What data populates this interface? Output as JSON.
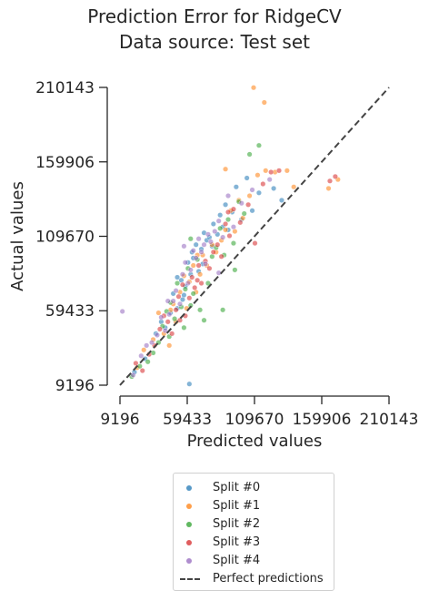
{
  "chart_data": {
    "type": "scatter",
    "title": "Prediction Error for RidgeCV",
    "subtitle": "Data source: Test set",
    "xlabel": "Predicted values",
    "ylabel": "Actual values",
    "xlim": [
      9196,
      210143
    ],
    "ylim": [
      9196,
      210143
    ],
    "xticks": [
      "9196",
      "59433",
      "109670",
      "159906",
      "210143"
    ],
    "yticks": [
      "9196",
      "59433",
      "109670",
      "159906",
      "210143"
    ],
    "legend_position": "bottom-center",
    "reference_line": {
      "name": "Perfect predictions",
      "color": "#444444",
      "style": "dashed"
    },
    "series": [
      {
        "name": "Split #0",
        "color": "#1f77b4",
        "points": [
          [
            20000,
            18000
          ],
          [
            28000,
            27000
          ],
          [
            36000,
            44000
          ],
          [
            40000,
            52000
          ],
          [
            43000,
            48000
          ],
          [
            47000,
            58000
          ],
          [
            49000,
            71000
          ],
          [
            52000,
            61000
          ],
          [
            55000,
            80000
          ],
          [
            56000,
            67000
          ],
          [
            58000,
            76000
          ],
          [
            60000,
            92000
          ],
          [
            62000,
            84000
          ],
          [
            64000,
            95000
          ],
          [
            66000,
            104000
          ],
          [
            68000,
            86000
          ],
          [
            70000,
            101000
          ],
          [
            72000,
            112000
          ],
          [
            74000,
            107000
          ],
          [
            76000,
            109000
          ],
          [
            79000,
            118000
          ],
          [
            82000,
            111000
          ],
          [
            84000,
            124000
          ],
          [
            86000,
            116000
          ],
          [
            88000,
            131000
          ],
          [
            90000,
            114000
          ],
          [
            93000,
            126000
          ],
          [
            96000,
            143000
          ],
          [
            100000,
            121000
          ],
          [
            104000,
            149000
          ],
          [
            108000,
            127000
          ],
          [
            113000,
            139000
          ],
          [
            124000,
            142000
          ],
          [
            130000,
            134000
          ],
          [
            52000,
            82000
          ],
          [
            57000,
            70000
          ],
          [
            63000,
            99000
          ],
          [
            71000,
            91000
          ],
          [
            78000,
            103000
          ],
          [
            61000,
            10000
          ]
        ]
      },
      {
        "name": "Split #1",
        "color": "#ff7f0e",
        "points": [
          [
            22000,
            21000
          ],
          [
            27000,
            33000
          ],
          [
            34000,
            40000
          ],
          [
            38000,
            58000
          ],
          [
            42000,
            44000
          ],
          [
            46000,
            36000
          ],
          [
            49000,
            64000
          ],
          [
            51000,
            52000
          ],
          [
            54000,
            72000
          ],
          [
            57000,
            83000
          ],
          [
            59000,
            61000
          ],
          [
            61000,
            79000
          ],
          [
            64000,
            90000
          ],
          [
            66000,
            72000
          ],
          [
            69000,
            84000
          ],
          [
            71000,
            97000
          ],
          [
            74000,
            90000
          ],
          [
            78000,
            104000
          ],
          [
            81000,
            99000
          ],
          [
            85000,
            107000
          ],
          [
            88000,
            114000
          ],
          [
            92000,
            127000
          ],
          [
            95000,
            113000
          ],
          [
            98000,
            134000
          ],
          [
            101000,
            122000
          ],
          [
            106000,
            137000
          ],
          [
            112000,
            151000
          ],
          [
            118000,
            154000
          ],
          [
            125000,
            153000
          ],
          [
            134000,
            154000
          ],
          [
            139000,
            143000
          ],
          [
            165000,
            142000
          ],
          [
            172000,
            148000
          ],
          [
            109000,
            210000
          ],
          [
            117000,
            200000
          ],
          [
            88000,
            155000
          ],
          [
            47000,
            60000
          ],
          [
            67000,
            97000
          ]
        ]
      },
      {
        "name": "Split #2",
        "color": "#2ca02c",
        "points": [
          [
            18000,
            15000
          ],
          [
            24000,
            22000
          ],
          [
            30000,
            25000
          ],
          [
            34000,
            31000
          ],
          [
            38000,
            38000
          ],
          [
            41000,
            49000
          ],
          [
            44000,
            59000
          ],
          [
            47000,
            65000
          ],
          [
            50000,
            54000
          ],
          [
            52000,
            78000
          ],
          [
            55000,
            62000
          ],
          [
            58000,
            74000
          ],
          [
            60000,
            88000
          ],
          [
            62000,
            63000
          ],
          [
            64000,
            71000
          ],
          [
            67000,
            94000
          ],
          [
            69000,
            60000
          ],
          [
            72000,
            53000
          ],
          [
            75000,
            78000
          ],
          [
            78000,
            96000
          ],
          [
            81000,
            102000
          ],
          [
            84000,
            115000
          ],
          [
            87000,
            97000
          ],
          [
            90000,
            121000
          ],
          [
            94000,
            105000
          ],
          [
            98000,
            133000
          ],
          [
            102000,
            125000
          ],
          [
            106000,
            165000
          ],
          [
            113000,
            171000
          ],
          [
            86000,
            60000
          ],
          [
            62000,
            108000
          ],
          [
            95000,
            87000
          ],
          [
            57000,
            48000
          ],
          [
            46000,
            42000
          ]
        ]
      },
      {
        "name": "Split #3",
        "color": "#d62728",
        "points": [
          [
            21000,
            24000
          ],
          [
            26000,
            19000
          ],
          [
            31000,
            30000
          ],
          [
            35000,
            36000
          ],
          [
            39000,
            47000
          ],
          [
            42000,
            56000
          ],
          [
            45000,
            52000
          ],
          [
            48000,
            44000
          ],
          [
            51000,
            60000
          ],
          [
            53000,
            69000
          ],
          [
            56000,
            77000
          ],
          [
            58000,
            56000
          ],
          [
            61000,
            68000
          ],
          [
            63000,
            82000
          ],
          [
            65000,
            75000
          ],
          [
            68000,
            90000
          ],
          [
            70000,
            78000
          ],
          [
            73000,
            93000
          ],
          [
            76000,
            88000
          ],
          [
            79000,
            99000
          ],
          [
            82000,
            104000
          ],
          [
            85000,
            96000
          ],
          [
            88000,
            118000
          ],
          [
            91000,
            110000
          ],
          [
            94000,
            128000
          ],
          [
            99000,
            119000
          ],
          [
            105000,
            131000
          ],
          [
            110000,
            105000
          ],
          [
            116000,
            145000
          ],
          [
            122000,
            153000
          ],
          [
            128000,
            154000
          ],
          [
            166000,
            147000
          ],
          [
            170000,
            150000
          ],
          [
            90000,
            126000
          ],
          [
            67000,
            80000
          ],
          [
            54000,
            53000
          ]
        ]
      },
      {
        "name": "Split #4",
        "color": "#9467bd",
        "points": [
          [
            11000,
            59000
          ],
          [
            19000,
            16000
          ],
          [
            25000,
            29000
          ],
          [
            29000,
            36000
          ],
          [
            33000,
            38000
          ],
          [
            37000,
            43000
          ],
          [
            40000,
            55000
          ],
          [
            43000,
            46000
          ],
          [
            46000,
            57000
          ],
          [
            49000,
            66000
          ],
          [
            51000,
            73000
          ],
          [
            54000,
            64000
          ],
          [
            56000,
            84000
          ],
          [
            58000,
            92000
          ],
          [
            60000,
            78000
          ],
          [
            62000,
            87000
          ],
          [
            64000,
            100000
          ],
          [
            66000,
            95000
          ],
          [
            68000,
            108000
          ],
          [
            70000,
            99000
          ],
          [
            72000,
            104000
          ],
          [
            75000,
            111000
          ],
          [
            77000,
            106000
          ],
          [
            80000,
            113000
          ],
          [
            83000,
            120000
          ],
          [
            86000,
            109000
          ],
          [
            90000,
            137000
          ],
          [
            94000,
            116000
          ],
          [
            100000,
            132000
          ],
          [
            108000,
            141000
          ],
          [
            121000,
            148000
          ],
          [
            73000,
            91000
          ],
          [
            45000,
            66000
          ],
          [
            57000,
            103000
          ],
          [
            83000,
            85000
          ]
        ]
      }
    ]
  }
}
